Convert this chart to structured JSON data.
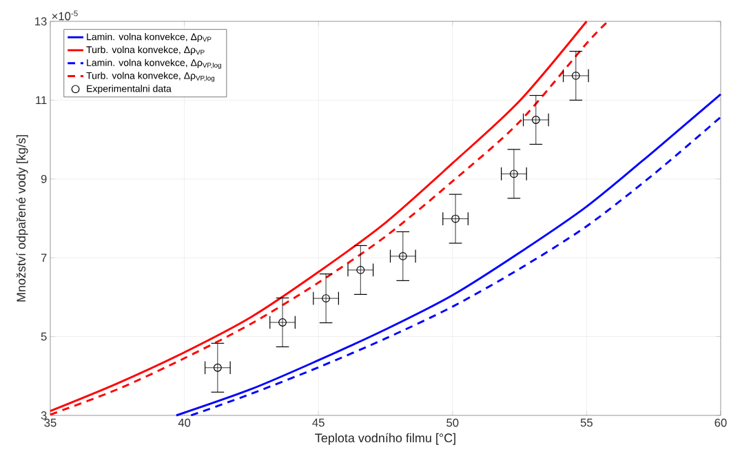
{
  "chart_data": {
    "type": "line",
    "xlabel": "Teplota vodního filmu [°C]",
    "ylabel": "Množství odpařené vody [kg/s]",
    "annotations": [
      "×10$^{-5}$"
    ],
    "xlim": [
      35,
      60
    ],
    "ylim": [
      3,
      13
    ],
    "xticks": [
      35,
      40,
      45,
      50,
      55,
      60
    ],
    "yticks": [
      3,
      5,
      7,
      9,
      11,
      13
    ],
    "grid": true,
    "legend": "top left",
    "series": [
      {
        "name": "Lamin. volna konvekce, Δρ$_{VP}$",
        "color": "#0000ff",
        "line_style": "solid",
        "marker": "none",
        "x": [
          39.7,
          42.5,
          45,
          47.5,
          50,
          52.5,
          55,
          57.5,
          60
        ],
        "values": [
          3.0,
          3.67,
          4.4,
          5.18,
          6.05,
          7.13,
          8.3,
          9.7,
          11.15
        ]
      },
      {
        "name": "Turb. volna konvekce, Δρ$_{VP}$",
        "color": "#ff0000",
        "line_style": "solid",
        "marker": "none",
        "x": [
          35,
          37.5,
          40,
          42.5,
          45,
          47.5,
          50,
          52.5,
          55
        ],
        "values": [
          3.11,
          3.81,
          4.6,
          5.5,
          6.64,
          7.89,
          9.4,
          10.98,
          13.0
        ]
      },
      {
        "name": "Lamin. volna konvekce, Δρ$_{VP,log}$",
        "color": "#0000ff",
        "line_style": "dashed",
        "marker": "none",
        "x": [
          40.25,
          42.5,
          45,
          47.5,
          50,
          52.5,
          55,
          57.5,
          60
        ],
        "values": [
          3.0,
          3.55,
          4.22,
          4.95,
          5.76,
          6.72,
          7.8,
          9.12,
          10.57
        ]
      },
      {
        "name": "Turb. volna konvekce, Δρ$_{VP,log}$",
        "color": "#ff0000",
        "line_style": "dashed",
        "marker": "none",
        "x": [
          35,
          37.5,
          40,
          42.5,
          45,
          47.5,
          50,
          52.5,
          55,
          55.8
        ],
        "values": [
          3.02,
          3.66,
          4.45,
          5.33,
          6.37,
          7.54,
          8.94,
          10.45,
          12.44,
          13.0
        ]
      },
      {
        "name": "Experimentalni data",
        "color": "#000000",
        "type": "scatter",
        "marker": "circle",
        "x": [
          41.24,
          43.66,
          45.28,
          46.57,
          48.15,
          50.11,
          52.29,
          53.11,
          54.6
        ],
        "values": [
          4.21,
          5.36,
          5.97,
          6.69,
          7.04,
          7.99,
          9.13,
          10.5,
          11.62
        ],
        "errors": [
          0.62,
          0.62,
          0.62,
          0.62,
          0.62,
          0.62,
          0.62,
          0.62,
          0.62
        ],
        "xerrors": [
          0.47,
          0.47,
          0.47,
          0.47,
          0.47,
          0.47,
          0.47,
          0.47,
          0.47
        ]
      }
    ]
  }
}
